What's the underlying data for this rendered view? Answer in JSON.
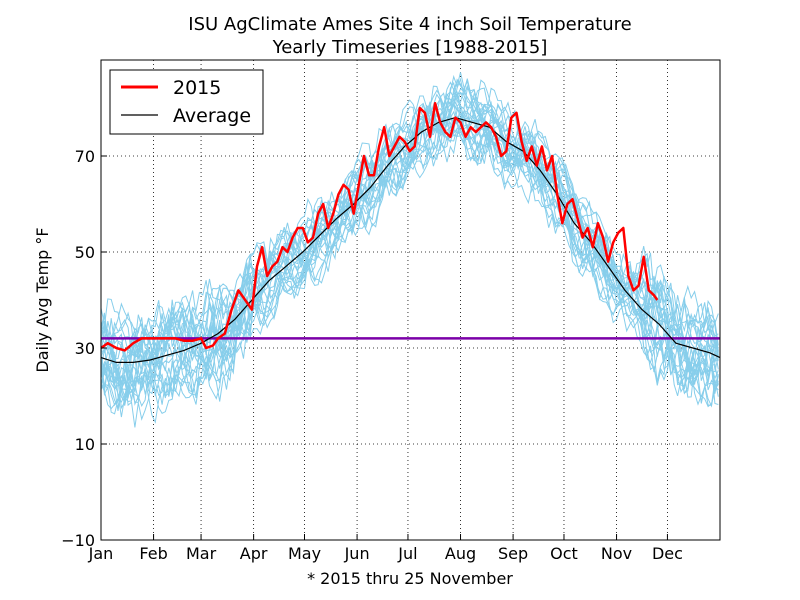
{
  "chart_data": {
    "type": "line",
    "title": "ISU AgClimate Ames Site 4 inch Soil Temperature",
    "subtitle": "Yearly Timeseries [1988-2015]",
    "xlabel": "* 2015 thru 25 November",
    "ylabel": "Daily Avg Temp °F",
    "ylim": [
      -10,
      90
    ],
    "xlim": [
      1,
      366
    ],
    "yticks": [
      -10,
      10,
      30,
      50,
      70
    ],
    "x_tick_days": [
      1,
      32,
      60,
      91,
      121,
      152,
      182,
      213,
      244,
      274,
      305,
      335
    ],
    "x_tick_labels": [
      "Jan",
      "Feb",
      "Mar",
      "Apr",
      "May",
      "Jun",
      "Jul",
      "Aug",
      "Sep",
      "Oct",
      "Nov",
      "Dec"
    ],
    "grid": true,
    "legend": {
      "position": "top-left",
      "entries": [
        "2015",
        "Average"
      ]
    },
    "freezing_line": {
      "value": 32,
      "color": "#7b00a8"
    },
    "colors": {
      "year_2015": "#ff0000",
      "average": "#000000",
      "other_years": "#87ceeb"
    },
    "series": [
      {
        "name": "2015",
        "x": [
          1,
          5,
          10,
          15,
          20,
          25,
          30,
          35,
          40,
          45,
          50,
          55,
          60,
          63,
          67,
          70,
          74,
          78,
          82,
          86,
          90,
          93,
          96,
          99,
          102,
          105,
          108,
          111,
          114,
          117,
          120,
          123,
          126,
          129,
          132,
          135,
          138,
          141,
          144,
          147,
          150,
          153,
          156,
          159,
          162,
          165,
          168,
          171,
          174,
          177,
          180,
          183,
          186,
          189,
          192,
          195,
          198,
          201,
          204,
          207,
          210,
          213,
          216,
          219,
          222,
          225,
          228,
          231,
          234,
          237,
          240,
          243,
          246,
          249,
          252,
          255,
          258,
          261,
          264,
          267,
          270,
          273,
          276,
          279,
          282,
          285,
          288,
          291,
          294,
          297,
          300,
          303,
          306,
          309,
          312,
          315,
          318,
          321,
          324,
          327,
          329
        ],
        "values": [
          30,
          31,
          30,
          29.5,
          31,
          32,
          32,
          32,
          32,
          32,
          31.5,
          31.5,
          32,
          30,
          30.5,
          32,
          33,
          38,
          42,
          40,
          38,
          47,
          51,
          45,
          47,
          48,
          51,
          50,
          53,
          55,
          55,
          52,
          53,
          58,
          60,
          55,
          58,
          62,
          64,
          63,
          58,
          64,
          70,
          66,
          66,
          72,
          76,
          70,
          72,
          74,
          73,
          71,
          72,
          80,
          79,
          74,
          81,
          77,
          75,
          74,
          78,
          77,
          74,
          76,
          75,
          76,
          77,
          76,
          74,
          70,
          71,
          78,
          79,
          73,
          69,
          72,
          68,
          72,
          67,
          70,
          62,
          56,
          60,
          61,
          57,
          53,
          55,
          51,
          56,
          53,
          48,
          52,
          54,
          55,
          45,
          42,
          43,
          49,
          42,
          41,
          40
        ]
      },
      {
        "name": "Average",
        "x": [
          1,
          10,
          20,
          30,
          40,
          50,
          60,
          70,
          80,
          90,
          100,
          110,
          120,
          130,
          140,
          150,
          160,
          170,
          180,
          190,
          200,
          210,
          220,
          230,
          240,
          250,
          260,
          270,
          280,
          290,
          300,
          310,
          320,
          330,
          340,
          350,
          360,
          366
        ],
        "values": [
          28,
          27,
          27,
          27.5,
          28.5,
          29.5,
          31,
          33,
          36,
          40,
          44,
          47,
          50,
          53.5,
          57,
          60,
          63.5,
          68,
          72,
          75,
          77,
          78,
          77,
          76,
          73,
          71,
          67,
          62,
          56,
          52,
          47,
          42,
          38,
          35,
          31,
          30,
          29,
          28
        ]
      }
    ]
  }
}
